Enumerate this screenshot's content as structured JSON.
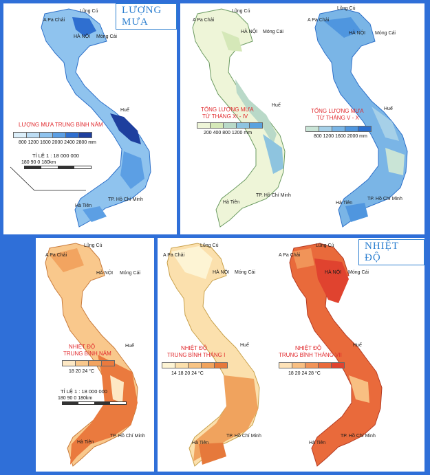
{
  "sections": {
    "rain_title": "LƯỢNG MƯA",
    "temp_title": "NHIỆT ĐỘ"
  },
  "places": {
    "lung_cu": "Lũng Cú",
    "apa_chai": "A Pa Chải",
    "ha_noi": "HÀ NỘI",
    "mong_cai": "Móng Cái",
    "hue": "Huế",
    "hcm": "TP. Hồ Chí Minh",
    "ha_tien": "Hà Tiên"
  },
  "maps": [
    {
      "title_line1": "LƯỢNG MƯA TRUNG BÌNH NĂM",
      "title_line2": "",
      "legend_ticks": "800 1200 1600 2000 2400 2800  mm",
      "legend_colors": [
        "#dbeef9",
        "#bcdcf3",
        "#8fc3ee",
        "#5c9fe4",
        "#2f6fd0",
        "#1e3f9e"
      ],
      "scale_title": "TỈ LỆ 1 : 18 000 000",
      "scale_ticks": "180   90      0          180km"
    },
    {
      "title_line1": "TỔNG LƯỢNG MƯA",
      "title_line2": "TỪ THÁNG XI - IV",
      "legend_ticks": "200   400   800   1200 mm",
      "legend_colors": [
        "#eef5d8",
        "#d5e8b8",
        "#b9d9c8",
        "#8ec4df",
        "#5aa3de"
      ]
    },
    {
      "title_line1": "TỔNG LƯỢNG MƯA",
      "title_line2": "TỪ THÁNG V - X",
      "legend_ticks": "800   1200  1600  2000 mm",
      "legend_colors": [
        "#c9e4d6",
        "#a6d0e8",
        "#7ab5e6",
        "#4f96df",
        "#2b6fd0"
      ]
    },
    {
      "title_line1": "NHIỆT ĐỘ",
      "title_line2": "TRUNG BÌNH NĂM",
      "legend_ticks": "18      20    24 °C",
      "legend_colors": [
        "#fde8c4",
        "#f9c88c",
        "#f2a460",
        "#ea7a3e"
      ],
      "scale_title": "TỈ LỆ 1 : 18 000 000",
      "scale_ticks": "180     90      0           180km"
    },
    {
      "title_line1": "NHIỆT ĐỘ",
      "title_line2": "TRUNG BÌNH THÁNG I",
      "legend_ticks": "14    18    20    24 °C",
      "legend_colors": [
        "#fdf4d4",
        "#fbe0ad",
        "#f7c486",
        "#f0a35e",
        "#e6793b"
      ]
    },
    {
      "title_line1": "NHIỆT ĐỘ",
      "title_line2": "TRUNG BÌNH THÁNG VII",
      "legend_ticks": "18    20    24    28 °C",
      "legend_colors": [
        "#fde2b8",
        "#f8bf82",
        "#f19459",
        "#e96a3b",
        "#e0432f"
      ]
    }
  ]
}
